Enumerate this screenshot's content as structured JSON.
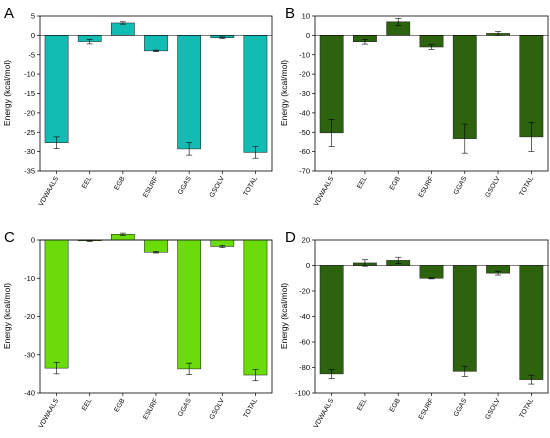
{
  "chart_data": [
    {
      "panel": "A",
      "type": "bar",
      "ylabel": "Energy (kcal/mol)",
      "xlabel": "",
      "ylim": [
        -35,
        5
      ],
      "yticks": [
        5,
        0,
        -5,
        -10,
        -15,
        -20,
        -25,
        -30,
        -35
      ],
      "categories": [
        "VDWAALS",
        "EEL",
        "EGB",
        "ESURF",
        "GGAS",
        "GSOLV",
        "TOTAL"
      ],
      "values": [
        -27.7,
        -1.6,
        3.2,
        -4.0,
        -29.3,
        -0.6,
        -30.2
      ],
      "errors": [
        1.5,
        0.6,
        0.3,
        0.2,
        1.6,
        0.2,
        1.5
      ],
      "bar_color": "#12bcb3"
    },
    {
      "panel": "B",
      "type": "bar",
      "ylabel": "Energy (kcal/mol)",
      "xlabel": "",
      "ylim": [
        -70,
        10
      ],
      "yticks": [
        10,
        0,
        -10,
        -20,
        -30,
        -40,
        -50,
        -60,
        -70
      ],
      "categories": [
        "VDWAALS",
        "EEL",
        "EGB",
        "ESURF",
        "GGAS",
        "GSOLV",
        "TOTAL"
      ],
      "values": [
        -50.3,
        -3.3,
        7.0,
        -6.0,
        -53.3,
        1.0,
        -52.4
      ],
      "errors": [
        7.0,
        1.2,
        1.8,
        1.2,
        7.5,
        1.0,
        7.5
      ],
      "bar_color": "#2d620e"
    },
    {
      "panel": "C",
      "type": "bar",
      "ylabel": "Energy (kcal/mol)",
      "xlabel": "",
      "ylim": [
        -40,
        0
      ],
      "yticks": [
        0,
        -10,
        -20,
        -30,
        -40
      ],
      "categories": [
        "VDWAALS",
        "EEL",
        "EGB",
        "ESURF",
        "GGAS",
        "GSOLV",
        "TOTAL"
      ],
      "values": [
        -33.5,
        -0.2,
        1.5,
        -3.2,
        -33.7,
        -1.7,
        -35.3
      ],
      "errors": [
        1.5,
        0.2,
        0.3,
        0.2,
        1.5,
        0.3,
        1.5
      ],
      "bar_color": "#6bdc0a"
    },
    {
      "panel": "D",
      "type": "bar",
      "ylabel": "Energy (kcal/mol)",
      "xlabel": "",
      "ylim": [
        -100,
        20
      ],
      "yticks": [
        20,
        0,
        -20,
        -40,
        -60,
        -80,
        -100
      ],
      "categories": [
        "VDWAALS",
        "EEL",
        "EGB",
        "ESURF",
        "GGAS",
        "GSOLV",
        "TOTAL"
      ],
      "values": [
        -85.0,
        2.0,
        4.0,
        -10.0,
        -83.0,
        -6.0,
        -89.5
      ],
      "errors": [
        3.5,
        2.5,
        2.5,
        0.5,
        4.0,
        1.5,
        3.5
      ],
      "bar_color": "#2d620e"
    }
  ]
}
